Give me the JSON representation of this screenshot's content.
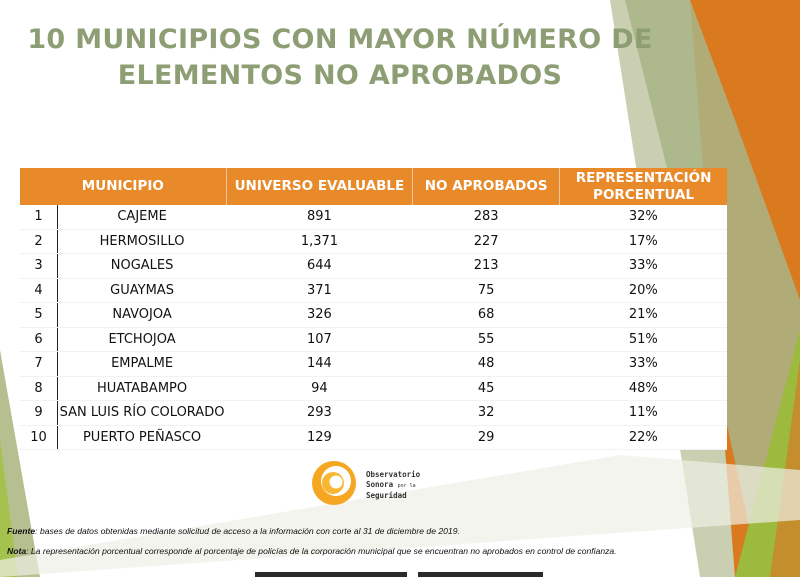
{
  "title": {
    "line1": "10 MUNICIPIOS CON MAYOR NÚMERO DE",
    "line2": "ELEMENTOS NO APROBADOS"
  },
  "table": {
    "headers": {
      "municipio": "MUNICIPIO",
      "universo": "UNIVERSO EVALUABLE",
      "no_aprobados": "NO APROBADOS",
      "representacion_1": "REPRESENTACIÓN",
      "representacion_2": "PORCENTUAL"
    },
    "rows": [
      {
        "n": "1",
        "municipio": "CAJEME",
        "universo": "891",
        "no_aprobados": "283",
        "porcentaje": "32%"
      },
      {
        "n": "2",
        "municipio": "HERMOSILLO",
        "universo": "1,371",
        "no_aprobados": "227",
        "porcentaje": "17%"
      },
      {
        "n": "3",
        "municipio": "NOGALES",
        "universo": "644",
        "no_aprobados": "213",
        "porcentaje": "33%"
      },
      {
        "n": "4",
        "municipio": "GUAYMAS",
        "universo": "371",
        "no_aprobados": "75",
        "porcentaje": "20%"
      },
      {
        "n": "5",
        "municipio": "NAVOJOA",
        "universo": "326",
        "no_aprobados": "68",
        "porcentaje": "21%"
      },
      {
        "n": "6",
        "municipio": "ETCHOJOA",
        "universo": "107",
        "no_aprobados": "55",
        "porcentaje": "51%"
      },
      {
        "n": "7",
        "municipio": "EMPALME",
        "universo": "144",
        "no_aprobados": "48",
        "porcentaje": "33%"
      },
      {
        "n": "8",
        "municipio": "HUATABAMPO",
        "universo": "94",
        "no_aprobados": "45",
        "porcentaje": "48%"
      },
      {
        "n": "9",
        "municipio": "SAN LUIS RÍO COLORADO",
        "universo": "293",
        "no_aprobados": "32",
        "porcentaje": "11%"
      },
      {
        "n": "10",
        "municipio": "PUERTO PEÑASCO",
        "universo": "129",
        "no_aprobados": "29",
        "porcentaje": "22%"
      }
    ]
  },
  "logo": {
    "line1": "Observatorio",
    "line2": "Sonora",
    "line2_small": "por la",
    "line3": "Seguridad"
  },
  "footnotes": {
    "fuente_label": "Fuente",
    "fuente_text": ": bases de datos obtenidas mediante solicitud de acceso a la información con corte al 31 de diciembre de 2019.",
    "nota_label": "Nota",
    "nota_text": ": La representación porcentual corresponde al porcentaje de policías de la corporación municipal que se encuentran no aprobados en control de confianza."
  },
  "colors": {
    "accent_orange": "#e8892a",
    "title_green": "#8e9e74",
    "deco_olive": "#b5bf8f",
    "deco_lime": "#a6c24e"
  }
}
